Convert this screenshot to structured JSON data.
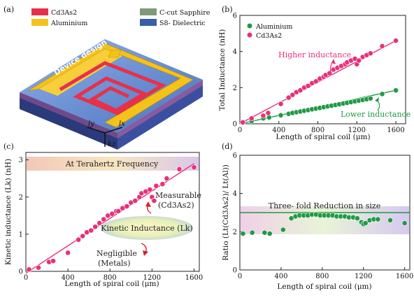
{
  "panels": {
    "a": "(a)",
    "b": "(b)",
    "c": "(c)",
    "d": "(d)"
  },
  "device": {
    "legend": [
      {
        "label": "Cd3As2",
        "color": "#e8304a"
      },
      {
        "label": "Aluminium",
        "color": "#f5c21a"
      },
      {
        "label": "C-cut Sapphire",
        "color": "#7f9a7a"
      },
      {
        "label": "S8- Dielectric",
        "color": "#3a5ea8"
      }
    ],
    "design_label": "Device design",
    "axes": {
      "ly": "ly",
      "lx": "lx",
      "kz": "kz"
    }
  },
  "chart_data": [
    {
      "id": "b",
      "type": "scatter",
      "xlabel": "Length of spiral coil (μm)",
      "ylabel": "Total Inductance (nH)",
      "xlim": [
        0,
        1700
      ],
      "ylim": [
        0,
        6
      ],
      "xticks": [
        0,
        400,
        800,
        1200,
        1600
      ],
      "yticks": [
        0,
        2,
        4,
        6
      ],
      "legend_placement": "top-left",
      "series": [
        {
          "name": "Aluminium",
          "color": "#1f9a45",
          "x": [
            30,
            120,
            240,
            300,
            420,
            500,
            540,
            580,
            620,
            660,
            700,
            740,
            780,
            820,
            860,
            900,
            940,
            980,
            1020,
            1060,
            1100,
            1140,
            1180,
            1220,
            1260,
            1300,
            1340,
            1460,
            1600
          ],
          "y": [
            0.05,
            0.15,
            0.3,
            0.35,
            0.47,
            0.55,
            0.6,
            0.64,
            0.68,
            0.72,
            0.76,
            0.8,
            0.84,
            0.88,
            0.92,
            0.96,
            1.0,
            1.04,
            1.08,
            1.12,
            1.16,
            1.2,
            1.24,
            1.28,
            1.32,
            1.36,
            1.4,
            1.65,
            1.85
          ],
          "fit": [
            [
              0,
              0.0
            ],
            [
              1600,
              1.85
            ]
          ]
        },
        {
          "name": "Cd3As2",
          "color": "#e8307a",
          "x": [
            30,
            120,
            240,
            290,
            420,
            500,
            540,
            580,
            620,
            660,
            700,
            740,
            780,
            820,
            860,
            880,
            920,
            960,
            1000,
            1040,
            1080,
            1100,
            1140,
            1180,
            1200,
            1220,
            1260,
            1300,
            1340,
            1460,
            1600
          ],
          "y": [
            0.08,
            0.3,
            0.45,
            0.6,
            1.1,
            1.45,
            1.6,
            1.75,
            1.85,
            2.0,
            2.1,
            2.25,
            2.35,
            2.5,
            2.6,
            2.7,
            2.8,
            3.0,
            3.1,
            3.2,
            3.3,
            3.4,
            3.5,
            3.6,
            3.3,
            3.5,
            3.7,
            3.8,
            3.9,
            4.3,
            4.6
          ],
          "fit": [
            [
              0,
              0.0
            ],
            [
              1600,
              4.6
            ]
          ]
        }
      ],
      "annotations": [
        {
          "text": "Higher inductance",
          "color": "#e8307a"
        },
        {
          "text": "Lower inductance",
          "color": "#1f9a45"
        }
      ]
    },
    {
      "id": "c",
      "type": "scatter",
      "xlabel": "Length of spiral coil (μm)",
      "ylabel": "Kinetic inductance (Lk) (nH)",
      "xlim": [
        0,
        1650
      ],
      "ylim": [
        0,
        3.2
      ],
      "xticks": [
        0,
        400,
        800,
        1200,
        1600
      ],
      "yticks": [
        0,
        1,
        2,
        3
      ],
      "banner": "At Terahertz Frequency",
      "series": [
        {
          "name": "Cd3As2",
          "color": "#e8307a",
          "x": [
            30,
            120,
            220,
            260,
            400,
            500,
            540,
            580,
            620,
            660,
            700,
            740,
            780,
            820,
            860,
            880,
            920,
            960,
            1000,
            1040,
            1080,
            1100,
            1140,
            1180,
            1200,
            1220,
            1240,
            1300,
            1340,
            1460,
            1600
          ],
          "y": [
            0.05,
            0.1,
            0.25,
            0.28,
            0.5,
            0.85,
            0.95,
            1.05,
            1.1,
            1.2,
            1.3,
            1.4,
            1.5,
            1.55,
            1.62,
            1.62,
            1.7,
            1.75,
            1.85,
            1.9,
            2.0,
            2.1,
            2.15,
            2.2,
            2.0,
            1.9,
            2.3,
            2.35,
            2.5,
            2.75,
            2.8
          ],
          "fit": [
            [
              0,
              -0.05
            ],
            [
              1600,
              2.9
            ]
          ]
        }
      ],
      "annotations": [
        {
          "line1": "Measurable",
          "line2": "(Cd3As2)"
        },
        {
          "text": "Kinetic Inductance (Lk)"
        },
        {
          "line1": "Negligible",
          "line2": "(Metals)"
        }
      ]
    },
    {
      "id": "d",
      "type": "scatter",
      "xlabel": "Length of spiral coil (μm)",
      "ylabel": "Ratio (Lt(Cd3As2)/ Lt(Al))",
      "xlim": [
        0,
        1650
      ],
      "ylim": [
        0,
        6
      ],
      "xticks": [
        0,
        400,
        800,
        1200,
        1600
      ],
      "yticks": [
        0,
        2,
        4,
        6
      ],
      "band_text": "Three- fold Reduction in size",
      "reference_line": 3.0,
      "series": [
        {
          "name": "Ratio",
          "color": "#1f9a45",
          "x": [
            30,
            120,
            240,
            290,
            420,
            500,
            540,
            580,
            620,
            660,
            700,
            740,
            780,
            820,
            860,
            900,
            940,
            980,
            1020,
            1060,
            1100,
            1140,
            1180,
            1200,
            1220,
            1260,
            1300,
            1340,
            1460,
            1600
          ],
          "y": [
            1.9,
            1.95,
            1.95,
            1.9,
            2.1,
            2.7,
            2.8,
            2.85,
            2.85,
            2.85,
            2.9,
            2.9,
            2.85,
            2.85,
            2.85,
            2.85,
            2.8,
            2.8,
            2.8,
            2.75,
            2.75,
            2.7,
            2.5,
            2.4,
            2.45,
            2.6,
            2.65,
            2.65,
            2.6,
            2.45
          ]
        }
      ]
    }
  ]
}
